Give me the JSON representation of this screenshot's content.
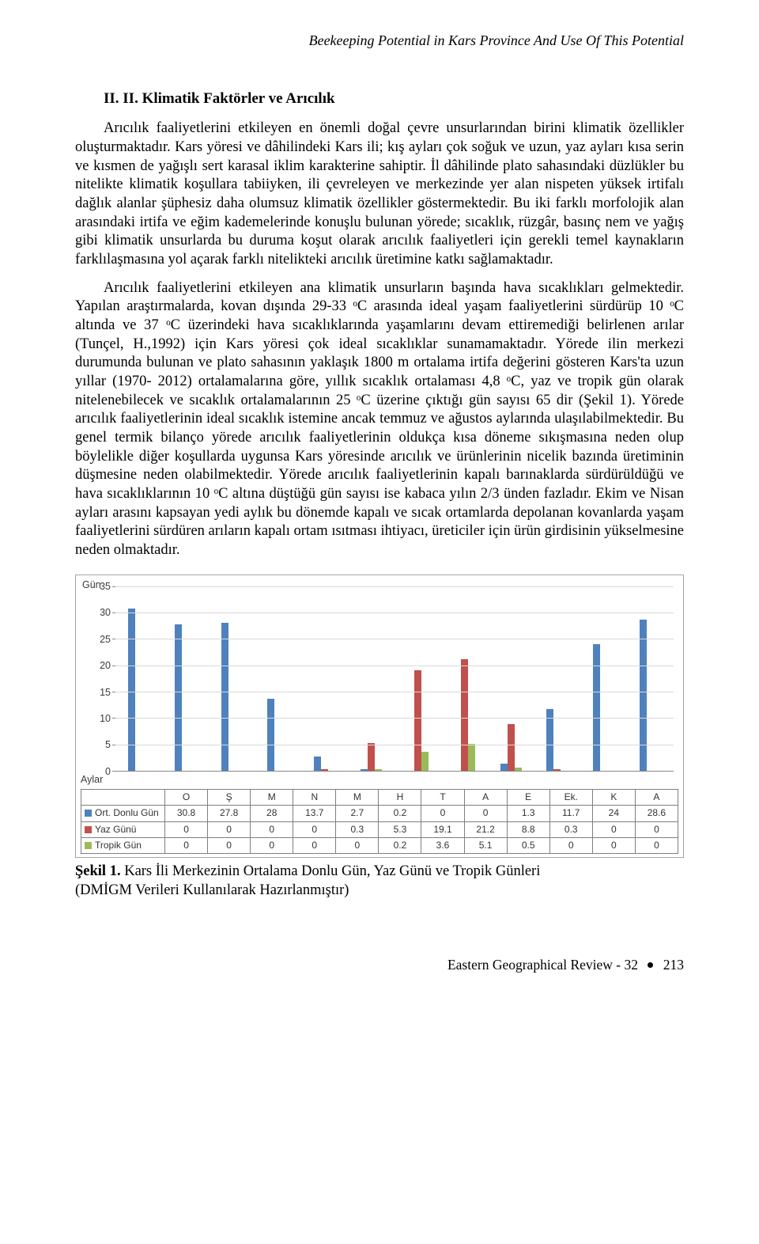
{
  "running_head": "Beekeeping Potential in Kars Province And Use Of This Potential",
  "section_heading": "II. II. Klimatik Faktörler ve Arıcılık",
  "paragraphs": {
    "p1": "Arıcılık faaliyetlerini etkileyen en önemli doğal çevre unsurlarından birini klimatik özellikler oluşturmaktadır. Kars yöresi ve dâhilindeki Kars ili; kış ayları çok soğuk ve uzun, yaz ayları kısa serin ve kısmen de yağışlı sert karasal iklim karakterine sahiptir. İl dâhilinde plato sahasındaki düzlükler bu nitelikte klimatik koşullara tabiiyken, ili çevreleyen ve merkezinde yer alan nispeten yüksek irtifalı dağlık alanlar şüphesiz daha olumsuz klimatik özellikler göstermektedir. Bu iki farklı morfolojik alan arasındaki irtifa ve eğim kademelerinde konuşlu bulunan yörede; sıcaklık, rüzgâr, basınç nem ve yağış gibi klimatik unsurlarda bu duruma koşut olarak arıcılık faaliyetleri için gerekli temel kaynakların farklılaşmasına yol açarak farklı nitelikteki arıcılık üretimine katkı sağlamaktadır.",
    "p2": "Arıcılık faaliyetlerini etkileyen ana klimatik unsurların başında hava sıcaklıkları gelmektedir. Yapılan araştırmalarda, kovan dışında 29-33 ᵒC arasında ideal yaşam faaliyetlerini sürdürüp 10 ᵒC altında ve 37 ᵒC üzerindeki hava sıcaklıklarında yaşamlarını devam ettiremediği belirlenen arılar (Tunçel, H.,1992) için Kars yöresi çok ideal sıcaklıklar sunamamaktadır. Yörede ilin merkezi durumunda bulunan ve plato sahasının yaklaşık 1800 m ortalama irtifa değerini gösteren Kars'ta uzun yıllar (1970- 2012) ortalamalarına göre, yıllık sıcaklık ortalaması 4,8 ᵒC,  yaz ve tropik gün olarak nitelenebilecek ve sıcaklık ortalamalarının 25 ᵒC üzerine çıktığı gün sayısı 65 dir (Şekil 1). Yörede arıcılık faaliyetlerinin ideal sıcaklık istemine ancak temmuz ve ağustos aylarında ulaşılabilmektedir. Bu genel termik bilanço yörede arıcılık faaliyetlerinin oldukça kısa döneme sıkışmasına neden olup böylelikle diğer koşullarda uygunsa Kars yöresinde arıcılık ve ürünlerinin nicelik bazında üretiminin düşmesine neden olabilmektedir. Yörede arıcılık faaliyetlerinin kapalı barınaklarda sürdürüldüğü ve hava sıcaklıklarının 10 ᵒC altına düştüğü gün sayısı ise kabaca yılın 2/3 ünden fazladır. Ekim ve Nisan ayları arasını kapsayan yedi aylık bu dönemde kapalı ve sıcak ortamlarda depolanan kovanlarda yaşam faaliyetlerini sürdüren arıların kapalı ortam ısıtması ihtiyacı, üreticiler için ürün girdisinin yükselmesine neden olmaktadır."
  },
  "chart": {
    "y_axis_label": "Gün",
    "x_axis_label": "Aylar",
    "ymax": 35,
    "ytick_step": 5,
    "grid_color": "#d9d9d9",
    "months": [
      "O",
      "Ş",
      "M",
      "N",
      "M",
      "H",
      "T",
      "A",
      "E",
      "Ek.",
      "K",
      "A"
    ],
    "series": [
      {
        "name": "Ort. Donlu Gün",
        "color": "#4f81bd",
        "values": [
          30.8,
          27.8,
          28,
          13.7,
          2.7,
          0.2,
          0,
          0,
          1.3,
          11.7,
          24,
          28.6
        ]
      },
      {
        "name": "Yaz Günü",
        "color": "#c0504d",
        "values": [
          0,
          0,
          0,
          0,
          0.3,
          5.3,
          19.1,
          21.2,
          8.8,
          0.3,
          0,
          0
        ]
      },
      {
        "name": "Tropik Gün",
        "color": "#9bbb59",
        "values": [
          0,
          0,
          0,
          0,
          0,
          0.2,
          3.6,
          5.1,
          0.5,
          0,
          0,
          0
        ]
      }
    ]
  },
  "caption": {
    "label": "Şekil 1.",
    "text1": " Kars İli Merkezinin Ortalama Donlu Gün, Yaz Günü ve Tropik Günleri",
    "text2": "(DMİGM Verileri Kullanılarak Hazırlanmıştır)"
  },
  "footer": {
    "journal": "Eastern Geographical Review - 32",
    "page": "213"
  }
}
